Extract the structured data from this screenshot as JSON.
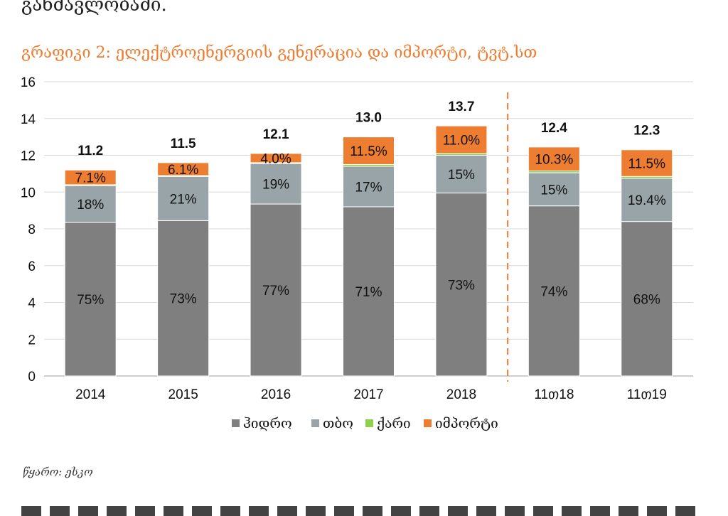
{
  "page": {
    "top_text": "განმავლობაში.",
    "chart_title": "გრაფიკი 2: ელექტროენერგიის გენერაცია და იმპორტი, ტვტ.სთ",
    "source": "წყარო: ესკო"
  },
  "chart_data": {
    "type": "bar",
    "stacked": true,
    "title": "გრაფიკი 2: ელექტროენერგიის გენერაცია და იმპორტი, ტვტ.სთ",
    "xlabel": "",
    "ylabel": "",
    "categories": [
      "2014",
      "2015",
      "2016",
      "2017",
      "2018",
      "11თ18",
      "11თ19"
    ],
    "ylim": [
      0,
      16
    ],
    "yticks": [
      0,
      2,
      4,
      6,
      8,
      10,
      12,
      14,
      16
    ],
    "grid": true,
    "legend_position": "bottom",
    "divider_after_index": 4,
    "totals": [
      "11.2",
      "11.5",
      "12.1",
      "13.0",
      "13.7",
      "12.4",
      "12.3"
    ],
    "series": [
      {
        "name": "ჰიდრო",
        "color": "#7f7f7f",
        "values": [
          8.35,
          8.45,
          9.35,
          9.2,
          9.95,
          9.25,
          8.4
        ],
        "labels": [
          "75%",
          "73%",
          "77%",
          "71%",
          "73%",
          "74%",
          "68%"
        ]
      },
      {
        "name": "თბო",
        "color": "#98a4a8",
        "values": [
          2.0,
          2.4,
          2.2,
          2.2,
          2.05,
          1.8,
          2.35
        ],
        "labels": [
          "18%",
          "21%",
          "19%",
          "17%",
          "15%",
          "15%",
          "19.4%"
        ]
      },
      {
        "name": "ქარი",
        "color": "#8fd14f",
        "values": [
          0.05,
          0.05,
          0.05,
          0.1,
          0.1,
          0.1,
          0.1
        ],
        "labels": [
          "",
          "",
          "",
          "",
          "",
          "",
          ""
        ]
      },
      {
        "name": "იმპორტი",
        "color": "#ed7d31",
        "values": [
          0.8,
          0.7,
          0.5,
          1.5,
          1.5,
          1.3,
          1.45
        ],
        "labels": [
          "7.1%",
          "6.1%",
          "4.0%",
          "11.5%",
          "11.0%",
          "10.3%",
          "11.5%"
        ]
      }
    ],
    "colors": {
      "grid": "#d9d9d9",
      "axis": "#bfbfbf",
      "divider": "#ed7d31",
      "title": "#ed7d31"
    }
  }
}
